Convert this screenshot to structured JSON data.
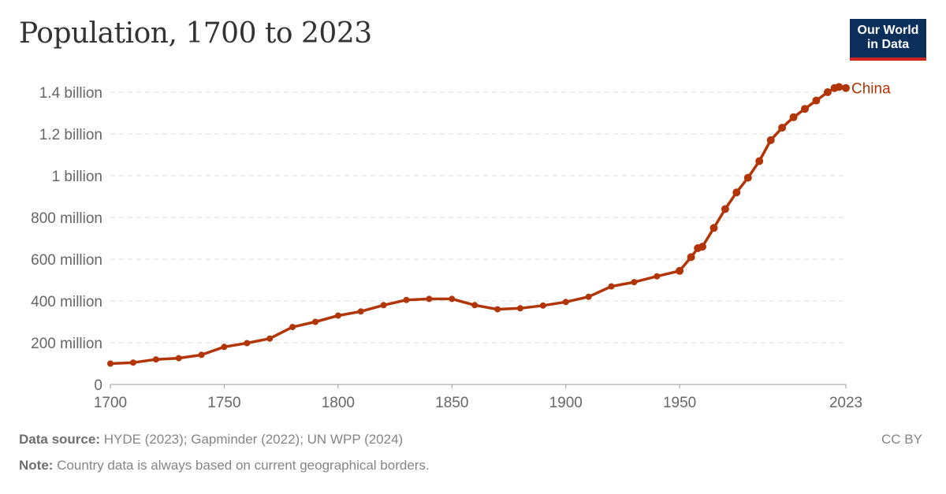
{
  "title": "Population, 1700 to 2023",
  "logo": {
    "line1": "Our World",
    "line2": "in Data"
  },
  "footer": {
    "source_label": "Data source:",
    "source_text": " HYDE (2023); Gapminder (2022); UN WPP (2024)",
    "note_label": "Note:",
    "note_text": " Country data is always based on current geographical borders.",
    "license": "CC BY"
  },
  "colors": {
    "series": "#b13507",
    "grid": "#dddddd",
    "axis": "#999999"
  },
  "chart_data": {
    "type": "line",
    "title": "Population, 1700 to 2023",
    "xlim": [
      1700,
      2023
    ],
    "ylim": [
      0,
      1400000000
    ],
    "x_ticks": [
      {
        "value": 1700,
        "label": "1700"
      },
      {
        "value": 1750,
        "label": "1750"
      },
      {
        "value": 1800,
        "label": "1800"
      },
      {
        "value": 1850,
        "label": "1850"
      },
      {
        "value": 1900,
        "label": "1900"
      },
      {
        "value": 1950,
        "label": "1950"
      },
      {
        "value": 2023,
        "label": "2023"
      }
    ],
    "y_ticks": [
      {
        "value": 0,
        "label": "0"
      },
      {
        "value": 200000000,
        "label": "200 million"
      },
      {
        "value": 400000000,
        "label": "400 million"
      },
      {
        "value": 600000000,
        "label": "600 million"
      },
      {
        "value": 800000000,
        "label": "800 million"
      },
      {
        "value": 1000000000,
        "label": "1 billion"
      },
      {
        "value": 1200000000,
        "label": "1.2 billion"
      },
      {
        "value": 1400000000,
        "label": "1.4 billion"
      }
    ],
    "grid": true,
    "series": [
      {
        "name": "China",
        "color": "#b13507",
        "points": [
          [
            1700,
            100000000
          ],
          [
            1710,
            105000000
          ],
          [
            1720,
            120000000
          ],
          [
            1730,
            126000000
          ],
          [
            1740,
            142000000
          ],
          [
            1750,
            180000000
          ],
          [
            1760,
            198000000
          ],
          [
            1770,
            220000000
          ],
          [
            1780,
            275000000
          ],
          [
            1790,
            300000000
          ],
          [
            1800,
            330000000
          ],
          [
            1810,
            350000000
          ],
          [
            1820,
            380000000
          ],
          [
            1830,
            405000000
          ],
          [
            1840,
            410000000
          ],
          [
            1850,
            410000000
          ],
          [
            1860,
            380000000
          ],
          [
            1870,
            360000000
          ],
          [
            1880,
            365000000
          ],
          [
            1890,
            378000000
          ],
          [
            1900,
            395000000
          ],
          [
            1910,
            420000000
          ],
          [
            1920,
            470000000
          ],
          [
            1930,
            490000000
          ],
          [
            1940,
            518000000
          ],
          [
            1950,
            544000000
          ],
          [
            1955,
            610000000
          ],
          [
            1958,
            653000000
          ],
          [
            1960,
            660000000
          ],
          [
            1965,
            750000000
          ],
          [
            1970,
            840000000
          ],
          [
            1975,
            920000000
          ],
          [
            1980,
            990000000
          ],
          [
            1985,
            1070000000
          ],
          [
            1990,
            1170000000
          ],
          [
            1995,
            1230000000
          ],
          [
            2000,
            1280000000
          ],
          [
            2005,
            1320000000
          ],
          [
            2010,
            1360000000
          ],
          [
            2015,
            1400000000
          ],
          [
            2018,
            1420000000
          ],
          [
            2020,
            1425000000
          ],
          [
            2023,
            1420000000
          ]
        ]
      }
    ]
  }
}
